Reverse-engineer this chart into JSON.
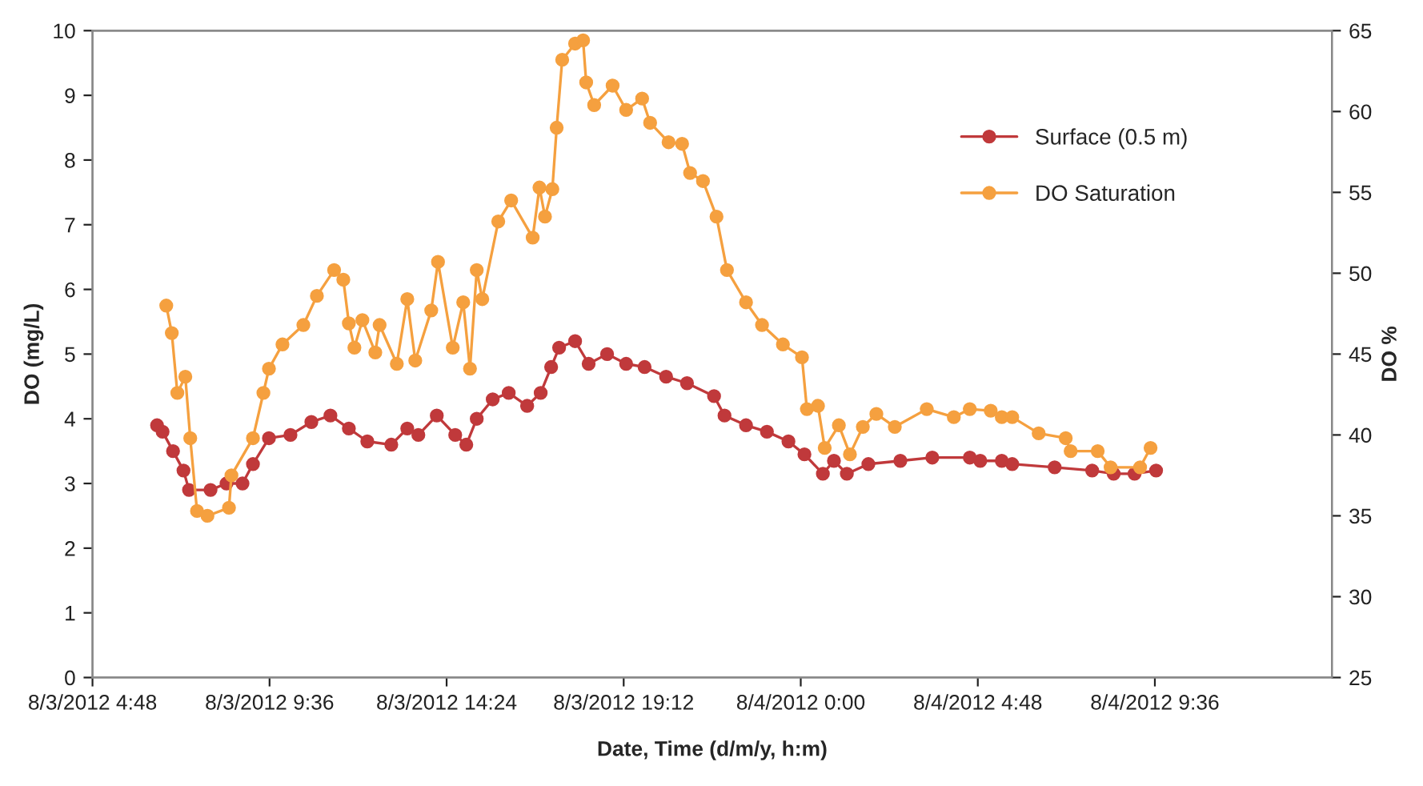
{
  "chart_data": {
    "type": "line",
    "xlabel": "Date, Time (d/m/y, h:m)",
    "ylabel": "DO (mg/L)",
    "y2label": "DO %",
    "xlim": [
      "2012-03-08T04:48",
      "2012-03-09T14:24"
    ],
    "xticks": [
      {
        "value": "2012-03-08T04:48",
        "label": "8/3/2012 4:48"
      },
      {
        "value": "2012-03-08T09:36",
        "label": "8/3/2012 9:36"
      },
      {
        "value": "2012-03-08T14:24",
        "label": "8/3/2012 14:24"
      },
      {
        "value": "2012-03-08T19:12",
        "label": "8/3/2012 19:12"
      },
      {
        "value": "2012-03-09T00:00",
        "label": "8/4/2012 0:00"
      },
      {
        "value": "2012-03-09T04:48",
        "label": "8/4/2012 4:48"
      },
      {
        "value": "2012-03-09T09:36",
        "label": "8/4/2012 9:36"
      }
    ],
    "ylim": [
      0,
      10
    ],
    "yticks": [
      0,
      1,
      2,
      3,
      4,
      5,
      6,
      7,
      8,
      9,
      10
    ],
    "y2lim": [
      25,
      65
    ],
    "y2ticks": [
      25,
      30,
      35,
      40,
      45,
      50,
      55,
      60,
      65
    ],
    "grid": false,
    "legend": "top right",
    "marker": "circle",
    "line_style": "solid",
    "series": [
      {
        "name": "Surface (0.5 m)",
        "color": "#c0393b",
        "x": [
          "2012-03-08T06:33",
          "2012-03-08T06:42",
          "2012-03-08T06:59",
          "2012-03-08T07:16",
          "2012-03-08T07:25",
          "2012-03-08T08:00",
          "2012-03-08T08:26",
          "2012-03-08T08:52",
          "2012-03-08T09:09",
          "2012-03-08T09:35",
          "2012-03-08T10:10",
          "2012-03-08T10:44",
          "2012-03-08T11:15",
          "2012-03-08T11:45",
          "2012-03-08T12:15",
          "2012-03-08T12:54",
          "2012-03-08T13:20",
          "2012-03-08T13:38",
          "2012-03-08T14:08",
          "2012-03-08T14:38",
          "2012-03-08T14:56",
          "2012-03-08T15:13",
          "2012-03-08T15:39",
          "2012-03-08T16:05",
          "2012-03-08T16:35",
          "2012-03-08T16:57",
          "2012-03-08T17:14",
          "2012-03-08T17:27",
          "2012-03-08T17:53",
          "2012-03-08T18:15",
          "2012-03-08T18:45",
          "2012-03-08T19:16",
          "2012-03-08T19:46",
          "2012-03-08T20:21",
          "2012-03-08T20:55",
          "2012-03-08T21:39",
          "2012-03-08T21:56",
          "2012-03-08T22:31",
          "2012-03-08T23:05",
          "2012-03-08T23:40",
          "2012-03-09T00:06",
          "2012-03-09T00:36",
          "2012-03-09T00:54",
          "2012-03-09T01:15",
          "2012-03-09T01:50",
          "2012-03-09T02:42",
          "2012-03-09T03:34",
          "2012-03-09T04:35",
          "2012-03-09T04:52",
          "2012-03-09T05:27",
          "2012-03-09T05:44",
          "2012-03-09T06:53",
          "2012-03-09T07:54",
          "2012-03-09T08:29",
          "2012-03-09T09:03",
          "2012-03-09T09:38"
        ],
        "values": [
          3.9,
          3.8,
          3.5,
          3.2,
          2.9,
          2.9,
          3.0,
          3.0,
          3.3,
          3.7,
          3.75,
          3.95,
          4.05,
          3.85,
          3.65,
          3.6,
          3.85,
          3.75,
          4.05,
          3.75,
          3.6,
          4.0,
          4.3,
          4.4,
          4.2,
          4.4,
          4.8,
          5.1,
          5.2,
          4.85,
          5.0,
          4.85,
          4.8,
          4.65,
          4.55,
          4.35,
          4.05,
          3.9,
          3.8,
          3.65,
          3.45,
          3.15,
          3.35,
          3.15,
          3.3,
          3.35,
          3.4,
          3.4,
          3.35,
          3.35,
          3.3,
          3.25,
          3.2,
          3.15,
          3.15,
          3.2
        ]
      },
      {
        "name": "DO Saturation",
        "color": "#f5a03f",
        "axis": "y2",
        "x": [
          "2012-03-08T06:48",
          "2012-03-08T06:57",
          "2012-03-08T07:06",
          "2012-03-08T07:19",
          "2012-03-08T07:27",
          "2012-03-08T07:38",
          "2012-03-08T07:55",
          "2012-03-08T08:30",
          "2012-03-08T08:34",
          "2012-03-08T09:09",
          "2012-03-08T09:26",
          "2012-03-08T09:35",
          "2012-03-08T09:57",
          "2012-03-08T10:31",
          "2012-03-08T10:53",
          "2012-03-08T11:21",
          "2012-03-08T11:36",
          "2012-03-08T11:45",
          "2012-03-08T11:54",
          "2012-03-08T12:07",
          "2012-03-08T12:28",
          "2012-03-08T12:35",
          "2012-03-08T13:03",
          "2012-03-08T13:20",
          "2012-03-08T13:33",
          "2012-03-08T13:59",
          "2012-03-08T14:10",
          "2012-03-08T14:34",
          "2012-03-08T14:51",
          "2012-03-08T15:02",
          "2012-03-08T15:13",
          "2012-03-08T15:22",
          "2012-03-08T15:48",
          "2012-03-08T16:09",
          "2012-03-08T16:44",
          "2012-03-08T16:55",
          "2012-03-08T17:04",
          "2012-03-08T17:16",
          "2012-03-08T17:23",
          "2012-03-08T17:32",
          "2012-03-08T17:53",
          "2012-03-08T18:06",
          "2012-03-08T18:11",
          "2012-03-08T18:24",
          "2012-03-08T18:54",
          "2012-03-08T19:16",
          "2012-03-08T19:42",
          "2012-03-08T19:55",
          "2012-03-08T20:25",
          "2012-03-08T20:47",
          "2012-03-08T21:00",
          "2012-03-08T21:21",
          "2012-03-08T21:43",
          "2012-03-08T22:00",
          "2012-03-08T22:31",
          "2012-03-08T22:57",
          "2012-03-08T23:31",
          "2012-03-09T00:02",
          "2012-03-09T00:10",
          "2012-03-09T00:28",
          "2012-03-09T00:39",
          "2012-03-09T01:02",
          "2012-03-09T01:20",
          "2012-03-09T01:41",
          "2012-03-09T02:03",
          "2012-03-09T02:33",
          "2012-03-09T03:25",
          "2012-03-09T04:09",
          "2012-03-09T04:35",
          "2012-03-09T05:09",
          "2012-03-09T05:27",
          "2012-03-09T05:44",
          "2012-03-09T06:27",
          "2012-03-09T07:11",
          "2012-03-09T07:19",
          "2012-03-09T08:03",
          "2012-03-09T08:24",
          "2012-03-09T09:12",
          "2012-03-09T09:29"
        ],
        "values": [
          48.0,
          46.3,
          42.6,
          43.6,
          39.8,
          35.3,
          35.0,
          35.5,
          37.5,
          39.8,
          42.6,
          44.1,
          45.6,
          46.8,
          48.6,
          50.2,
          49.6,
          46.9,
          45.4,
          47.1,
          45.1,
          46.8,
          44.4,
          48.4,
          44.6,
          47.7,
          50.7,
          45.4,
          48.2,
          44.1,
          50.2,
          48.4,
          53.2,
          54.5,
          52.2,
          55.3,
          53.5,
          55.2,
          59.0,
          63.2,
          64.2,
          64.4,
          61.8,
          60.4,
          61.6,
          60.1,
          60.8,
          59.3,
          58.1,
          58.0,
          56.2,
          55.7,
          53.5,
          50.2,
          48.2,
          46.8,
          45.6,
          44.8,
          41.6,
          41.8,
          39.2,
          40.6,
          38.8,
          40.5,
          41.3,
          40.5,
          41.6,
          41.1,
          41.6,
          41.5,
          41.1,
          41.1,
          40.1,
          39.8,
          39.0,
          39.0,
          38.0,
          38.0,
          39.2
        ]
      }
    ]
  }
}
